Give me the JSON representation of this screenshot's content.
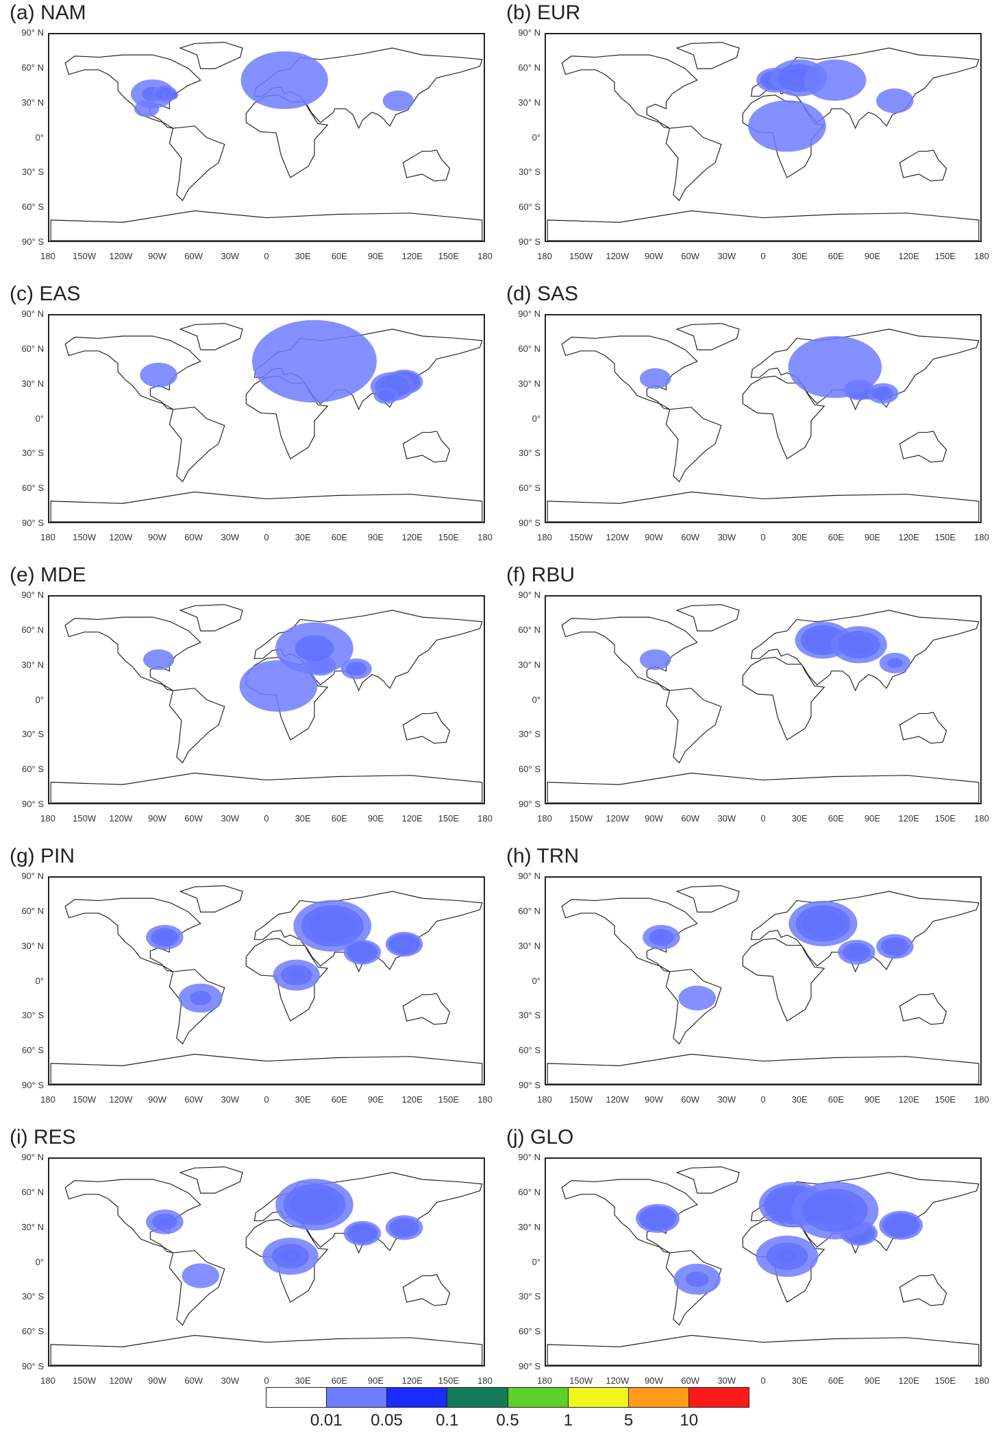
{
  "panels": [
    {
      "title": "(a) NAM",
      "region": "NAM"
    },
    {
      "title": "(b) EUR",
      "region": "EUR"
    },
    {
      "title": "(c) EAS",
      "region": "EAS"
    },
    {
      "title": "(d) SAS",
      "region": "SAS"
    },
    {
      "title": "(e) MDE",
      "region": "MDE"
    },
    {
      "title": "(f) RBU",
      "region": "RBU"
    },
    {
      "title": "(g) PIN",
      "region": "PIN"
    },
    {
      "title": "(h) TRN",
      "region": "TRN"
    },
    {
      "title": "(i) RES",
      "region": "RES"
    },
    {
      "title": "(j) GLO",
      "region": "GLO"
    }
  ],
  "lat_ticks": [
    "90° N",
    "60° N",
    "30° N",
    "0°",
    "30° S",
    "60° S",
    "90° S"
  ],
  "lon_ticks": [
    "180",
    "150W",
    "120W",
    "90W",
    "60W",
    "30W",
    "0",
    "30E",
    "60E",
    "90E",
    "120E",
    "150E",
    "180"
  ],
  "colorbar": {
    "colors": [
      "#ffffff",
      "#6f7dff",
      "#1a2cff",
      "#137a5a",
      "#5fcf2a",
      "#f2f51c",
      "#ff9a1a",
      "#ff1a1a"
    ],
    "labels": [
      "0.01",
      "0.05",
      "0.1",
      "0.5",
      "1",
      "5",
      "10"
    ]
  }
}
